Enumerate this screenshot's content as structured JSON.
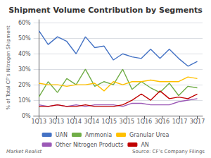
{
  "chart_data": {
    "type": "line",
    "title": "Shipment Volume Contribution by Segments",
    "ylabel": "% of Total CF’s Nitrogen Shipment",
    "annotations": [
      "Market Realist",
      "Source: CF’s Company Filings"
    ],
    "x": [
      0,
      0.5294117647058824,
      1.0588235294117647,
      1.588235294117647,
      2.1176470588235294,
      2.6470588235294117,
      3.176470588235294,
      3.7058823529411766,
      4.235294117647059,
      4.764705882352941,
      5.294117647058823,
      5.823529411764706,
      6.352941176470588,
      6.882352941176471,
      7.411764705882353,
      7.9411764705882355,
      8.470588235294118,
      9
    ],
    "xlim": [
      -0.3,
      9.3
    ],
    "xticks": [
      {
        "value": 0,
        "label": "1Q13"
      },
      {
        "value": 1,
        "label": "3Q13"
      },
      {
        "value": 2,
        "label": "1Q14"
      },
      {
        "value": 3,
        "label": "3Q14"
      },
      {
        "value": 4,
        "label": "1Q15"
      },
      {
        "value": 5,
        "label": "3Q15"
      },
      {
        "value": 6,
        "label": "1Q16"
      },
      {
        "value": 7,
        "label": "3Q16"
      },
      {
        "value": 8,
        "label": "1Q17"
      },
      {
        "value": 9,
        "label": "3Q17"
      }
    ],
    "ylim": [
      0,
      0.62
    ],
    "yticks": [
      {
        "value": 0.0,
        "label": "0%"
      },
      {
        "value": 0.1,
        "label": "10%"
      },
      {
        "value": 0.2,
        "label": "20%"
      },
      {
        "value": 0.3,
        "label": "30%"
      },
      {
        "value": 0.4,
        "label": "40%"
      },
      {
        "value": 0.5,
        "label": "50%"
      },
      {
        "value": 0.6,
        "label": "60%"
      }
    ],
    "grid": true,
    "legend": "bottom",
    "series": [
      {
        "name": "UAN",
        "color": "#4472C4",
        "values": [
          0.55,
          0.46,
          0.51,
          0.48,
          0.4,
          0.51,
          0.44,
          0.45,
          0.36,
          0.4,
          0.38,
          0.37,
          0.43,
          0.37,
          0.43,
          0.37,
          0.32,
          0.35
        ]
      },
      {
        "name": "Ammonia",
        "color": "#70AD47",
        "values": [
          0.12,
          0.22,
          0.15,
          0.24,
          0.2,
          0.3,
          0.19,
          0.22,
          0.2,
          0.3,
          0.17,
          0.22,
          0.18,
          0.15,
          0.21,
          0.13,
          0.19,
          0.18
        ]
      },
      {
        "name": "Granular Urea",
        "color": "#FFC000",
        "values": [
          0.21,
          0.2,
          0.2,
          0.19,
          0.2,
          0.2,
          0.21,
          0.16,
          0.22,
          0.2,
          0.22,
          0.22,
          0.23,
          0.22,
          0.22,
          0.22,
          0.25,
          0.24
        ]
      },
      {
        "name": "Other Nitrogen Products",
        "color": "#9B59B6",
        "values": [
          0.07,
          0.06,
          0.07,
          0.06,
          0.07,
          0.06,
          0.07,
          0.07,
          0.07,
          0.06,
          0.08,
          0.08,
          0.07,
          0.07,
          0.07,
          0.09,
          0.1,
          0.11
        ]
      },
      {
        "name": "AN",
        "color": "#C00000",
        "values": [
          0.06,
          0.06,
          0.07,
          0.06,
          0.06,
          0.07,
          0.06,
          0.06,
          0.06,
          0.07,
          0.1,
          0.14,
          0.1,
          0.16,
          0.11,
          0.12,
          0.11,
          0.14
        ]
      }
    ]
  }
}
